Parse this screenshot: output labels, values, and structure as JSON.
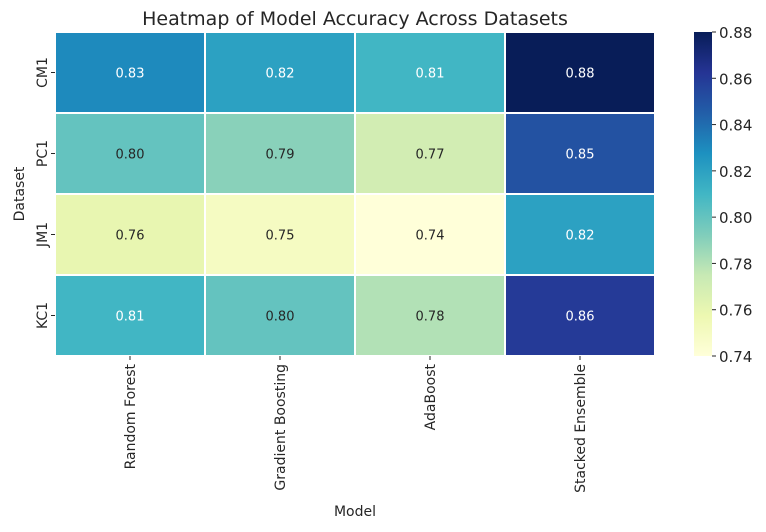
{
  "chart_data": {
    "type": "heatmap",
    "title": "Heatmap of Model Accuracy Across Datasets",
    "xlabel": "Model",
    "ylabel": "Dataset",
    "x_categories": [
      "Random Forest",
      "Gradient Boosting",
      "AdaBoost",
      "Stacked Ensemble"
    ],
    "y_categories": [
      "CM1",
      "PC1",
      "JM1",
      "KC1"
    ],
    "values": [
      [
        0.83,
        0.82,
        0.81,
        0.88
      ],
      [
        0.8,
        0.79,
        0.77,
        0.85
      ],
      [
        0.76,
        0.75,
        0.74,
        0.82
      ],
      [
        0.81,
        0.8,
        0.78,
        0.86
      ]
    ],
    "annotation_format": "0.00",
    "colormap": "YlGnBu",
    "vmin": 0.74,
    "vmax": 0.88,
    "colorbar_ticks": [
      "0.74",
      "0.76",
      "0.78",
      "0.80",
      "0.82",
      "0.84",
      "0.86",
      "0.88"
    ],
    "colorbar_tick_values": [
      0.74,
      0.76,
      0.78,
      0.8,
      0.82,
      0.84,
      0.86,
      0.88
    ],
    "colorbar_position": "right",
    "grid": false
  },
  "colors": {
    "cell_border": "#ffffff",
    "dark_text": "#262626",
    "light_text": "#ffffff",
    "axis_text": "#262626"
  }
}
